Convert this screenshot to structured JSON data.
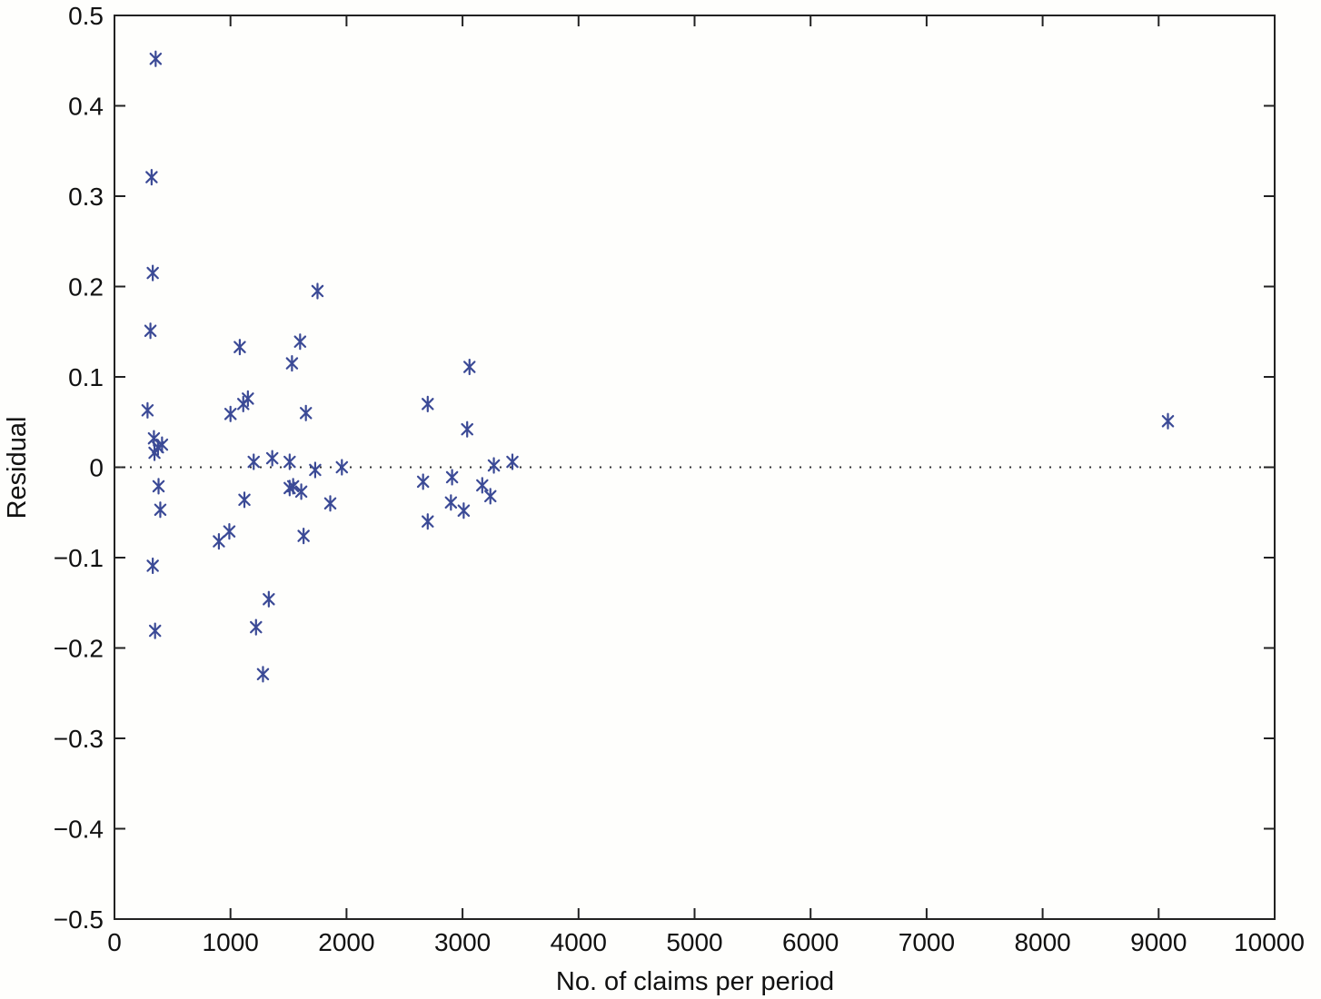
{
  "chart_data": {
    "type": "scatter",
    "xlabel": "No. of claims per period",
    "ylabel": "Residual",
    "xlim": [
      0,
      10000
    ],
    "ylim": [
      -0.5,
      0.5
    ],
    "xticks": [
      0,
      1000,
      2000,
      3000,
      4000,
      5000,
      6000,
      7000,
      8000,
      9000,
      10000
    ],
    "xtick_labels": [
      "0",
      "1000",
      "2000",
      "3000",
      "4000",
      "5000",
      "6000",
      "7000",
      "8000",
      "9000",
      "10000"
    ],
    "yticks": [
      -0.5,
      -0.4,
      -0.3,
      -0.2,
      -0.1,
      0,
      0.1,
      0.2,
      0.3,
      0.4,
      0.5
    ],
    "ytick_labels": [
      "−0.5",
      "−0.4",
      "−0.3",
      "−0.2",
      "−0.1",
      "0",
      "0.1",
      "0.2",
      "0.3",
      "0.4",
      "0.5"
    ],
    "marker": "asterisk",
    "marker_color": "#3b4a96",
    "reference_line": {
      "y": 0,
      "style": "dotted"
    },
    "grid": false,
    "points": [
      [
        355,
        0.452
      ],
      [
        320,
        0.321
      ],
      [
        330,
        0.215
      ],
      [
        310,
        0.151
      ],
      [
        285,
        0.063
      ],
      [
        340,
        0.032
      ],
      [
        345,
        0.016
      ],
      [
        375,
        0.022
      ],
      [
        410,
        0.025
      ],
      [
        380,
        -0.021
      ],
      [
        395,
        -0.047
      ],
      [
        330,
        -0.109
      ],
      [
        350,
        -0.181
      ],
      [
        900,
        -0.082
      ],
      [
        990,
        -0.071
      ],
      [
        1000,
        0.059
      ],
      [
        1080,
        0.133
      ],
      [
        1110,
        0.07
      ],
      [
        1150,
        0.076
      ],
      [
        1120,
        -0.036
      ],
      [
        1200,
        0.006
      ],
      [
        1220,
        -0.177
      ],
      [
        1280,
        -0.229
      ],
      [
        1330,
        -0.146
      ],
      [
        1360,
        0.01
      ],
      [
        1510,
        0.006
      ],
      [
        1510,
        -0.023
      ],
      [
        1540,
        -0.021
      ],
      [
        1530,
        0.115
      ],
      [
        1600,
        0.139
      ],
      [
        1610,
        -0.027
      ],
      [
        1630,
        -0.076
      ],
      [
        1650,
        0.06
      ],
      [
        1730,
        -0.003
      ],
      [
        1750,
        0.195
      ],
      [
        1860,
        -0.04
      ],
      [
        1960,
        0.0
      ],
      [
        2660,
        -0.016
      ],
      [
        2700,
        0.07
      ],
      [
        2700,
        -0.06
      ],
      [
        2900,
        -0.039
      ],
      [
        2910,
        -0.011
      ],
      [
        3010,
        -0.048
      ],
      [
        3040,
        0.042
      ],
      [
        3060,
        0.111
      ],
      [
        3170,
        -0.02
      ],
      [
        3240,
        -0.032
      ],
      [
        3270,
        0.002
      ],
      [
        3430,
        0.006
      ],
      [
        9080,
        0.051
      ]
    ]
  }
}
